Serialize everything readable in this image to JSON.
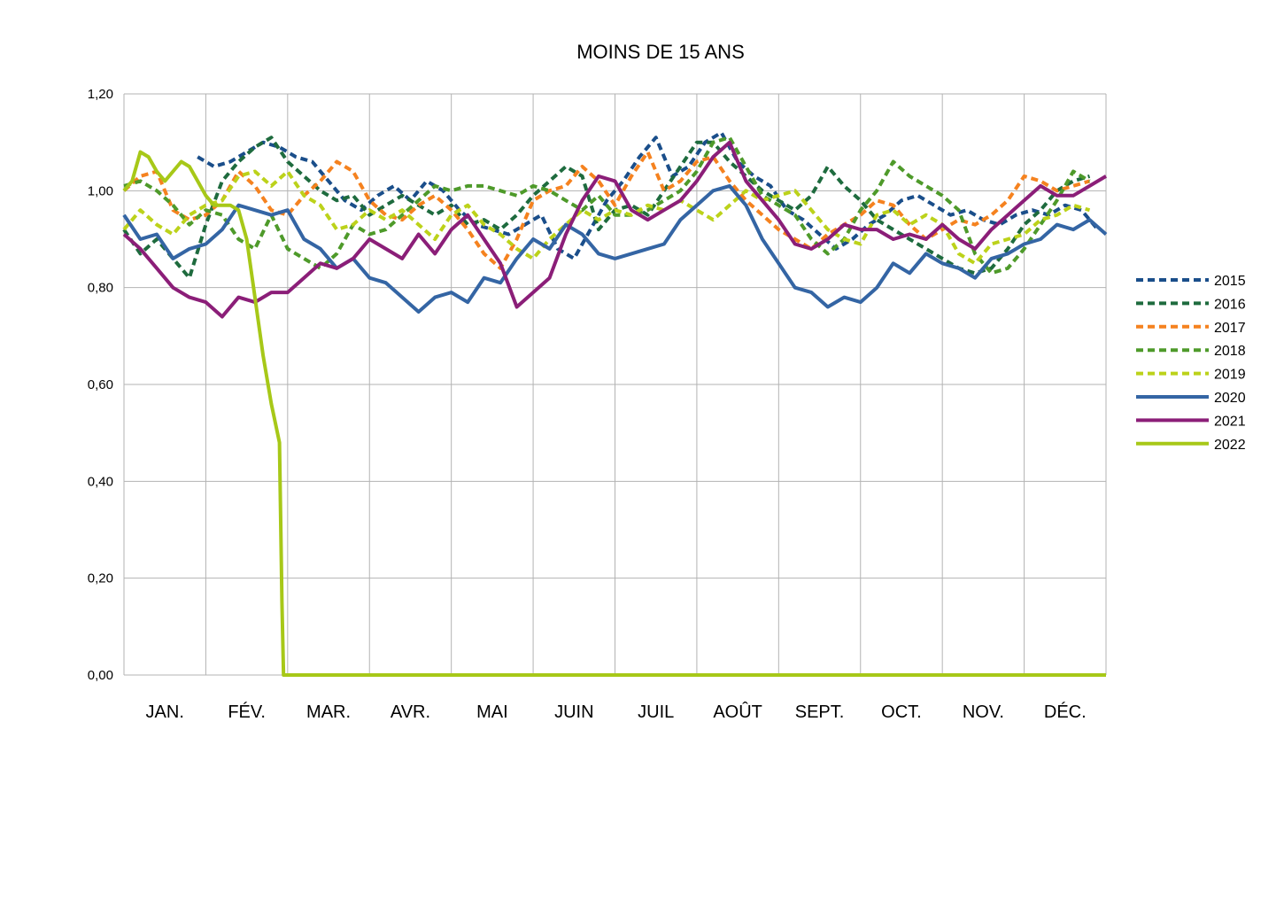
{
  "chart_data": {
    "type": "line",
    "title": "MOINS DE 15 ANS",
    "xlabel": "",
    "ylabel": "",
    "categories": [
      "JAN.",
      "FÉV.",
      "MAR.",
      "AVR.",
      "MAI",
      "JUIN",
      "JUIL",
      "AOÛT",
      "SEPT.",
      "OCT.",
      "NOV.",
      "DÉC."
    ],
    "x_unit": "month index (0 = start of January, 12 = end of December)",
    "yticks": [
      "0,00",
      "0,20",
      "0,40",
      "0,60",
      "0,80",
      "1,00",
      "1,20"
    ],
    "ylim": [
      0,
      1.2
    ],
    "grid": true,
    "legend_position": "right",
    "series": [
      {
        "name": "2015",
        "color": "#1a4e8a",
        "dash": true,
        "x": [
          0.9,
          1.1,
          1.3,
          1.5,
          1.7,
          1.9,
          2.1,
          2.3,
          2.5,
          2.7,
          2.9,
          3.1,
          3.3,
          3.5,
          3.7,
          3.9,
          4.1,
          4.3,
          4.5,
          4.7,
          4.9,
          5.1,
          5.3,
          5.5,
          5.7,
          5.9,
          6.1,
          6.3,
          6.5,
          6.7,
          6.9,
          7.1,
          7.3,
          7.5,
          7.7,
          7.9,
          8.1,
          8.3,
          8.5,
          8.7,
          8.9,
          9.1,
          9.3,
          9.5,
          9.7,
          9.9,
          10.1,
          10.3,
          10.5,
          10.7,
          10.9,
          11.1,
          11.3,
          11.5,
          11.7,
          11.9
        ],
        "values": [
          1.07,
          1.05,
          1.06,
          1.08,
          1.1,
          1.09,
          1.07,
          1.06,
          1.02,
          0.98,
          0.96,
          0.99,
          1.01,
          0.98,
          1.02,
          1.0,
          0.96,
          0.93,
          0.92,
          0.91,
          0.93,
          0.95,
          0.88,
          0.86,
          0.92,
          0.98,
          1.02,
          1.07,
          1.11,
          1.03,
          1.05,
          1.1,
          1.12,
          1.06,
          1.03,
          1.01,
          0.96,
          0.94,
          0.91,
          0.88,
          0.9,
          0.93,
          0.95,
          0.98,
          0.99,
          0.97,
          0.95,
          0.96,
          0.94,
          0.93,
          0.95,
          0.96,
          0.95,
          0.97,
          0.96,
          0.92
        ]
      },
      {
        "name": "2016",
        "color": "#1e6b3e",
        "dash": true,
        "x": [
          0.0,
          0.2,
          0.4,
          0.6,
          0.8,
          1.0,
          1.2,
          1.4,
          1.6,
          1.8,
          2.0,
          2.2,
          2.4,
          2.6,
          2.8,
          3.0,
          3.2,
          3.4,
          3.6,
          3.8,
          4.0,
          4.2,
          4.4,
          4.6,
          4.8,
          5.0,
          5.2,
          5.4,
          5.6,
          5.8,
          6.0,
          6.2,
          6.4,
          6.6,
          6.8,
          7.0,
          7.2,
          7.4,
          7.6,
          7.8,
          8.0,
          8.2,
          8.4,
          8.6,
          8.8,
          9.0,
          9.2,
          9.4,
          9.6,
          9.8,
          10.0,
          10.2,
          10.4,
          10.6,
          10.8,
          11.0,
          11.2,
          11.4,
          11.6,
          11.8
        ],
        "values": [
          0.92,
          0.87,
          0.9,
          0.86,
          0.82,
          0.93,
          1.02,
          1.06,
          1.09,
          1.11,
          1.06,
          1.03,
          1.0,
          0.98,
          0.99,
          0.95,
          0.97,
          0.99,
          0.97,
          0.95,
          0.97,
          0.93,
          0.94,
          0.92,
          0.95,
          0.99,
          1.02,
          1.05,
          1.03,
          0.92,
          0.96,
          0.97,
          0.95,
          1.0,
          1.05,
          1.1,
          1.1,
          1.06,
          1.03,
          1.0,
          0.98,
          0.96,
          0.99,
          1.05,
          1.01,
          0.98,
          0.94,
          0.92,
          0.9,
          0.88,
          0.86,
          0.84,
          0.83,
          0.84,
          0.88,
          0.93,
          0.96,
          1.0,
          1.02,
          1.03
        ]
      },
      {
        "name": "2017",
        "color": "#f5821f",
        "dash": true,
        "x": [
          0.0,
          0.2,
          0.4,
          0.6,
          0.8,
          1.0,
          1.2,
          1.4,
          1.6,
          1.8,
          2.0,
          2.2,
          2.4,
          2.6,
          2.8,
          3.0,
          3.2,
          3.4,
          3.6,
          3.8,
          4.0,
          4.2,
          4.4,
          4.6,
          4.8,
          5.0,
          5.2,
          5.4,
          5.6,
          5.8,
          6.0,
          6.2,
          6.4,
          6.6,
          6.8,
          7.0,
          7.2,
          7.4,
          7.6,
          7.8,
          8.0,
          8.2,
          8.4,
          8.6,
          8.8,
          9.0,
          9.2,
          9.4,
          9.6,
          9.8,
          10.0,
          10.2,
          10.4,
          10.6,
          10.8,
          11.0,
          11.2,
          11.4,
          11.6,
          11.8
        ],
        "values": [
          1.0,
          1.03,
          1.04,
          0.96,
          0.94,
          0.95,
          0.98,
          1.04,
          1.01,
          0.96,
          0.95,
          0.99,
          1.02,
          1.06,
          1.04,
          0.98,
          0.95,
          0.94,
          0.97,
          0.99,
          0.96,
          0.92,
          0.87,
          0.84,
          0.9,
          0.98,
          1.0,
          1.01,
          1.05,
          1.02,
          0.97,
          1.03,
          1.08,
          1.0,
          1.02,
          1.06,
          1.07,
          1.02,
          0.98,
          0.95,
          0.92,
          0.9,
          0.88,
          0.91,
          0.93,
          0.95,
          0.98,
          0.97,
          0.93,
          0.9,
          0.92,
          0.94,
          0.93,
          0.95,
          0.98,
          1.03,
          1.02,
          1.0,
          1.01,
          1.02
        ]
      },
      {
        "name": "2018",
        "color": "#4e9a2a",
        "dash": true,
        "x": [
          0.0,
          0.2,
          0.4,
          0.6,
          0.8,
          1.0,
          1.2,
          1.4,
          1.6,
          1.8,
          2.0,
          2.2,
          2.4,
          2.6,
          2.8,
          3.0,
          3.2,
          3.4,
          3.6,
          3.8,
          4.0,
          4.2,
          4.4,
          4.6,
          4.8,
          5.0,
          5.2,
          5.4,
          5.6,
          5.8,
          6.0,
          6.2,
          6.4,
          6.6,
          6.8,
          7.0,
          7.2,
          7.4,
          7.6,
          7.8,
          8.0,
          8.2,
          8.4,
          8.6,
          8.8,
          9.0,
          9.2,
          9.4,
          9.6,
          9.8,
          10.0,
          10.2,
          10.4,
          10.6,
          10.8,
          11.0,
          11.2,
          11.4,
          11.6,
          11.8
        ],
        "values": [
          1.01,
          1.02,
          1.0,
          0.97,
          0.93,
          0.96,
          0.95,
          0.9,
          0.88,
          0.95,
          0.88,
          0.86,
          0.84,
          0.87,
          0.93,
          0.91,
          0.92,
          0.95,
          0.98,
          1.01,
          1.0,
          1.01,
          1.01,
          1.0,
          0.99,
          1.01,
          1.0,
          0.98,
          0.96,
          0.99,
          0.95,
          0.95,
          0.96,
          0.98,
          1.0,
          1.04,
          1.1,
          1.11,
          1.05,
          0.99,
          0.97,
          0.95,
          0.9,
          0.87,
          0.9,
          0.96,
          1.0,
          1.06,
          1.03,
          1.01,
          0.99,
          0.96,
          0.87,
          0.83,
          0.84,
          0.88,
          0.93,
          0.98,
          1.04,
          1.02
        ]
      },
      {
        "name": "2019",
        "color": "#bcd21a",
        "dash": true,
        "x": [
          0.0,
          0.2,
          0.4,
          0.6,
          0.8,
          1.0,
          1.2,
          1.4,
          1.6,
          1.8,
          2.0,
          2.2,
          2.4,
          2.6,
          2.8,
          3.0,
          3.2,
          3.4,
          3.6,
          3.8,
          4.0,
          4.2,
          4.4,
          4.6,
          4.8,
          5.0,
          5.2,
          5.4,
          5.6,
          5.8,
          6.0,
          6.2,
          6.4,
          6.6,
          6.8,
          7.0,
          7.2,
          7.4,
          7.6,
          7.8,
          8.0,
          8.2,
          8.4,
          8.6,
          8.8,
          9.0,
          9.2,
          9.4,
          9.6,
          9.8,
          10.0,
          10.2,
          10.4,
          10.6,
          10.8,
          11.0,
          11.2,
          11.4,
          11.6,
          11.8
        ],
        "values": [
          0.92,
          0.96,
          0.93,
          0.91,
          0.95,
          0.97,
          0.98,
          1.03,
          1.04,
          1.01,
          1.04,
          0.99,
          0.97,
          0.92,
          0.93,
          0.96,
          0.94,
          0.96,
          0.93,
          0.9,
          0.95,
          0.97,
          0.93,
          0.91,
          0.88,
          0.86,
          0.9,
          0.93,
          0.96,
          0.94,
          0.96,
          0.95,
          0.97,
          0.96,
          0.98,
          0.96,
          0.94,
          0.97,
          1.0,
          0.98,
          0.99,
          1.0,
          0.96,
          0.92,
          0.9,
          0.89,
          0.95,
          0.96,
          0.93,
          0.95,
          0.93,
          0.87,
          0.85,
          0.89,
          0.9,
          0.91,
          0.94,
          0.95,
          0.97,
          0.96
        ]
      },
      {
        "name": "2020",
        "color": "#3465a4",
        "dash": false,
        "x": [
          0.0,
          0.2,
          0.4,
          0.6,
          0.8,
          1.0,
          1.2,
          1.4,
          1.6,
          1.8,
          2.0,
          2.2,
          2.4,
          2.6,
          2.8,
          3.0,
          3.2,
          3.4,
          3.6,
          3.8,
          4.0,
          4.2,
          4.4,
          4.6,
          4.8,
          5.0,
          5.2,
          5.4,
          5.6,
          5.8,
          6.0,
          6.2,
          6.4,
          6.6,
          6.8,
          7.0,
          7.2,
          7.4,
          7.6,
          7.8,
          8.0,
          8.2,
          8.4,
          8.6,
          8.8,
          9.0,
          9.2,
          9.4,
          9.6,
          9.8,
          10.0,
          10.2,
          10.4,
          10.6,
          10.8,
          11.0,
          11.2,
          11.4,
          11.6,
          11.8,
          12.0
        ],
        "values": [
          0.95,
          0.9,
          0.91,
          0.86,
          0.88,
          0.89,
          0.92,
          0.97,
          0.96,
          0.95,
          0.96,
          0.9,
          0.88,
          0.84,
          0.86,
          0.82,
          0.81,
          0.78,
          0.75,
          0.78,
          0.79,
          0.77,
          0.82,
          0.81,
          0.86,
          0.9,
          0.88,
          0.93,
          0.91,
          0.87,
          0.86,
          0.87,
          0.88,
          0.89,
          0.94,
          0.97,
          1.0,
          1.01,
          0.97,
          0.9,
          0.85,
          0.8,
          0.79,
          0.76,
          0.78,
          0.77,
          0.8,
          0.85,
          0.83,
          0.87,
          0.85,
          0.84,
          0.82,
          0.86,
          0.87,
          0.89,
          0.9,
          0.93,
          0.92,
          0.94,
          0.91
        ]
      },
      {
        "name": "2021",
        "color": "#8b1e78",
        "dash": false,
        "x": [
          0.0,
          0.2,
          0.4,
          0.6,
          0.8,
          1.0,
          1.2,
          1.4,
          1.6,
          1.8,
          2.0,
          2.2,
          2.4,
          2.6,
          2.8,
          3.0,
          3.2,
          3.4,
          3.6,
          3.8,
          4.0,
          4.2,
          4.4,
          4.6,
          4.8,
          5.0,
          5.2,
          5.4,
          5.6,
          5.8,
          6.0,
          6.2,
          6.4,
          6.6,
          6.8,
          7.0,
          7.2,
          7.4,
          7.6,
          7.8,
          8.0,
          8.2,
          8.4,
          8.6,
          8.8,
          9.0,
          9.2,
          9.4,
          9.6,
          9.8,
          10.0,
          10.2,
          10.4,
          10.6,
          10.8,
          11.0,
          11.2,
          11.4,
          11.6,
          11.8,
          12.0
        ],
        "values": [
          0.91,
          0.88,
          0.84,
          0.8,
          0.78,
          0.77,
          0.74,
          0.78,
          0.77,
          0.79,
          0.79,
          0.82,
          0.85,
          0.84,
          0.86,
          0.9,
          0.88,
          0.86,
          0.91,
          0.87,
          0.92,
          0.95,
          0.9,
          0.85,
          0.76,
          0.79,
          0.82,
          0.91,
          0.98,
          1.03,
          1.02,
          0.96,
          0.94,
          0.96,
          0.98,
          1.02,
          1.07,
          1.1,
          1.02,
          0.98,
          0.94,
          0.89,
          0.88,
          0.9,
          0.93,
          0.92,
          0.92,
          0.9,
          0.91,
          0.9,
          0.93,
          0.9,
          0.88,
          0.92,
          0.95,
          0.98,
          1.01,
          0.99,
          0.99,
          1.01,
          1.03
        ]
      },
      {
        "name": "2022",
        "color": "#a7c818",
        "dash": false,
        "x": [
          0.0,
          0.1,
          0.2,
          0.3,
          0.4,
          0.5,
          0.6,
          0.7,
          0.8,
          0.9,
          1.0,
          1.1,
          1.2,
          1.3,
          1.4,
          1.5,
          1.6,
          1.7,
          1.8,
          1.85,
          1.9,
          1.93,
          1.95,
          12.0
        ],
        "values": [
          1.0,
          1.02,
          1.08,
          1.07,
          1.04,
          1.02,
          1.04,
          1.06,
          1.05,
          1.02,
          0.99,
          0.97,
          0.97,
          0.97,
          0.96,
          0.9,
          0.78,
          0.66,
          0.56,
          0.52,
          0.48,
          0.15,
          0.0,
          0.0
        ]
      }
    ]
  }
}
